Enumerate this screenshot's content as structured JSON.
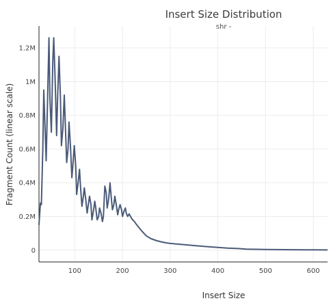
{
  "chart_data": {
    "type": "line",
    "title": "Insert Size Distribution",
    "subtitle": "shr -",
    "xlabel": "Insert Size",
    "ylabel": "Fragment Count (linear scale)",
    "xlim": [
      25,
      630
    ],
    "ylim": [
      -70000,
      1330000
    ],
    "x_ticks": [
      100,
      200,
      300,
      400,
      500,
      600
    ],
    "x_tick_labels": [
      "100",
      "200",
      "300",
      "400",
      "500",
      "600"
    ],
    "y_ticks": [
      0,
      200000,
      400000,
      600000,
      800000,
      1000000,
      1200000
    ],
    "y_tick_labels": [
      "0",
      "0.2M",
      "0.4M",
      "0.6M",
      "0.8M",
      "1M",
      "1.2M"
    ],
    "grid": true,
    "series": [
      {
        "color": "#4a5a78",
        "x": [
          25,
          28,
          30,
          33,
          35,
          38,
          40,
          43,
          46,
          48,
          51,
          54,
          56,
          59,
          62,
          64,
          67,
          70,
          72,
          75,
          78,
          80,
          83,
          86,
          88,
          91,
          94,
          96,
          99,
          102,
          104,
          107,
          110,
          112,
          115,
          118,
          120,
          123,
          126,
          128,
          131,
          134,
          136,
          139,
          142,
          144,
          147,
          150,
          152,
          155,
          158,
          160,
          163,
          166,
          168,
          171,
          174,
          176,
          179,
          182,
          184,
          187,
          190,
          192,
          195,
          198,
          200,
          203,
          206,
          208,
          211,
          214,
          217,
          220,
          225,
          230,
          240,
          250,
          260,
          270,
          280,
          290,
          300,
          320,
          340,
          360,
          380,
          400,
          420,
          440,
          450,
          460,
          480,
          500,
          520,
          540,
          560,
          580,
          600,
          620,
          630
        ],
        "values": [
          150000,
          280000,
          270000,
          600000,
          950000,
          700000,
          530000,
          900000,
          1260000,
          900000,
          700000,
          1120000,
          1260000,
          1000000,
          680000,
          900000,
          1150000,
          900000,
          620000,
          720000,
          920000,
          760000,
          520000,
          600000,
          760000,
          620000,
          430000,
          500000,
          620000,
          500000,
          330000,
          400000,
          480000,
          380000,
          260000,
          320000,
          370000,
          300000,
          220000,
          260000,
          320000,
          270000,
          180000,
          230000,
          290000,
          250000,
          180000,
          200000,
          250000,
          220000,
          170000,
          200000,
          380000,
          340000,
          250000,
          300000,
          400000,
          330000,
          240000,
          270000,
          320000,
          270000,
          210000,
          240000,
          270000,
          240000,
          200000,
          230000,
          250000,
          220000,
          200000,
          215000,
          200000,
          185000,
          170000,
          150000,
          115000,
          85000,
          68000,
          58000,
          50000,
          44000,
          40000,
          35000,
          30000,
          25000,
          20000,
          16000,
          12000,
          10000,
          8000,
          6000,
          5000,
          4000,
          3500,
          3000,
          2500,
          2000,
          1800,
          1500,
          1500
        ]
      }
    ]
  }
}
